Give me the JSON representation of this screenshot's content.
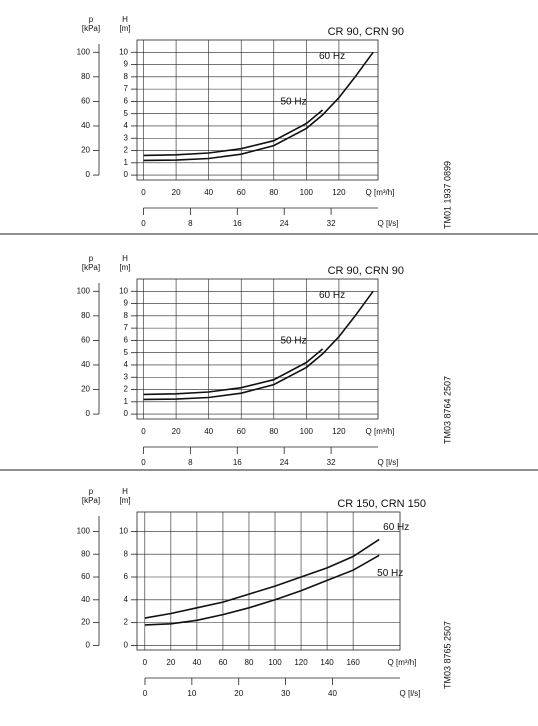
{
  "chart_data": [
    {
      "type": "line",
      "title": "CR 90, CRN 90",
      "code": "TM01 1937 0899",
      "y_label": "H",
      "y_unit": "[m]",
      "y2_label": "p",
      "y2_unit": "[kPa]",
      "x_label": "Q [m³/h]",
      "x2_label": "Q [l/s]",
      "x": [
        0,
        20,
        40,
        60,
        80,
        100,
        110,
        120,
        130,
        141
      ],
      "series": [
        {
          "name": "60 Hz",
          "color": "#111111",
          "values": [
            1.2,
            1.22,
            1.35,
            1.7,
            2.4,
            3.8,
            4.9,
            6.3,
            8.0,
            10.0
          ]
        },
        {
          "name": "50 Hz",
          "color": "#111111",
          "values": [
            1.6,
            1.65,
            1.8,
            2.15,
            2.8,
            4.2,
            5.3,
            null,
            null,
            null
          ]
        }
      ],
      "xlim": [
        -4,
        144
      ],
      "xticks": [
        0,
        20,
        40,
        60,
        80,
        100,
        120
      ],
      "x2lim": [
        -1.1,
        40
      ],
      "x2ticks": [
        0,
        8,
        16,
        24,
        32
      ],
      "ylim": [
        -0.4,
        11
      ],
      "yticks": [
        0,
        1,
        2,
        3,
        4,
        5,
        6,
        7,
        8,
        9,
        10
      ],
      "y2lim": [
        -4,
        110
      ],
      "y2ticks": [
        0,
        20,
        40,
        60,
        80,
        100
      ],
      "grid": true
    },
    {
      "type": "line",
      "title": "CR 90, CRN 90",
      "code": "TM03 8764 2507",
      "y_label": "H",
      "y_unit": "[m]",
      "y2_label": "p",
      "y2_unit": "[kPa]",
      "x_label": "Q [m³/h]",
      "x2_label": "Q [l/s]",
      "x": [
        0,
        20,
        40,
        60,
        80,
        100,
        110,
        120,
        130,
        141
      ],
      "series": [
        {
          "name": "60 Hz",
          "color": "#111111",
          "values": [
            1.2,
            1.22,
            1.35,
            1.7,
            2.4,
            3.8,
            4.9,
            6.3,
            8.0,
            10.0
          ]
        },
        {
          "name": "50 Hz",
          "color": "#111111",
          "values": [
            1.6,
            1.65,
            1.8,
            2.15,
            2.8,
            4.2,
            5.3,
            null,
            null,
            null
          ]
        }
      ],
      "xlim": [
        -4,
        144
      ],
      "xticks": [
        0,
        20,
        40,
        60,
        80,
        100,
        120
      ],
      "x2lim": [
        -1.1,
        40
      ],
      "x2ticks": [
        0,
        8,
        16,
        24,
        32
      ],
      "ylim": [
        -0.4,
        11
      ],
      "yticks": [
        0,
        1,
        2,
        3,
        4,
        5,
        6,
        7,
        8,
        9,
        10
      ],
      "y2lim": [
        -4,
        110
      ],
      "y2ticks": [
        0,
        20,
        40,
        60,
        80,
        100
      ],
      "grid": true
    },
    {
      "type": "line",
      "title": "CR 150, CRN 150",
      "code": "TM03 8765 2507",
      "y_label": "H",
      "y_unit": "[m]",
      "y2_label": "p",
      "y2_unit": "[kPa]",
      "x_label": "Q [m³/h]",
      "x2_label": "Q [l/s]",
      "x": [
        0,
        20,
        40,
        60,
        80,
        100,
        120,
        140,
        160,
        180
      ],
      "series": [
        {
          "name": "60 Hz",
          "color": "#111111",
          "values": [
            2.4,
            2.8,
            3.3,
            3.8,
            4.5,
            5.2,
            6.0,
            6.8,
            7.8,
            9.3
          ]
        },
        {
          "name": "50 Hz",
          "color": "#111111",
          "values": [
            1.8,
            1.9,
            2.2,
            2.7,
            3.3,
            4.0,
            4.8,
            5.7,
            6.6,
            7.9
          ]
        }
      ],
      "xlim": [
        -6,
        196
      ],
      "xticks": [
        0,
        20,
        40,
        60,
        80,
        100,
        120,
        140,
        160
      ],
      "x2lim": [
        -1.7,
        54.4
      ],
      "x2ticks": [
        0,
        10,
        20,
        30,
        40
      ],
      "ylim": [
        -0.4,
        11.7
      ],
      "yticks": [
        0,
        2,
        4,
        6,
        8,
        10
      ],
      "y2lim": [
        -4,
        117
      ],
      "y2ticks": [
        0,
        20,
        40,
        60,
        80,
        100
      ],
      "grid": true
    }
  ]
}
